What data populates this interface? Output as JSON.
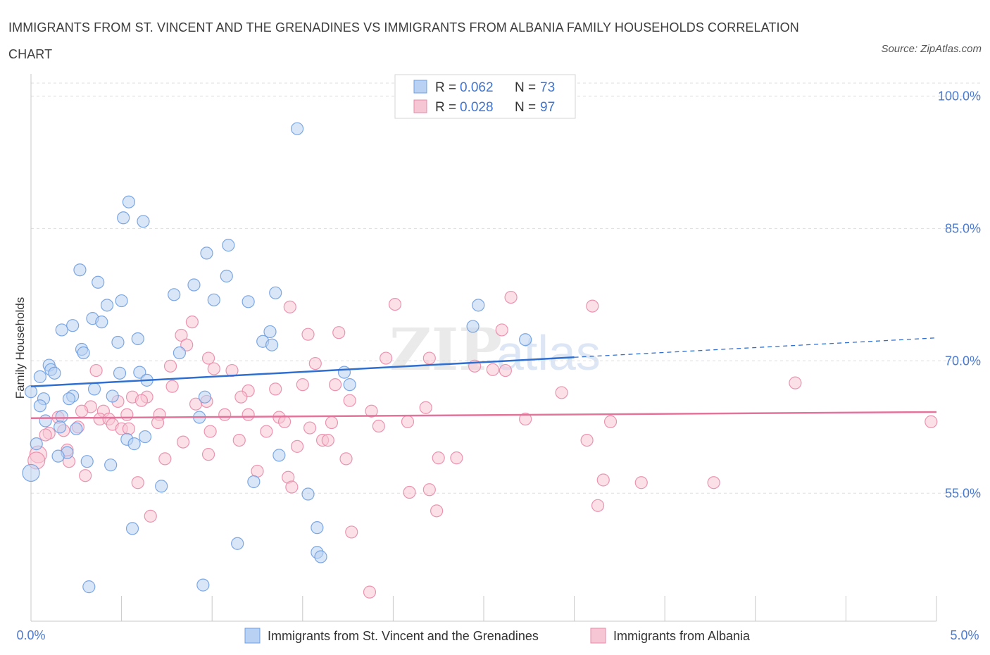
{
  "header": {
    "title": "IMMIGRANTS FROM ST. VINCENT AND THE GRENADINES VS IMMIGRANTS FROM ALBANIA FAMILY HOUSEHOLDS CORRELATION CHART",
    "source": "Source: ZipAtlas.com"
  },
  "watermark": {
    "zip": "ZIP",
    "atlas": "atlas"
  },
  "colors": {
    "blue": "#6f9fe0",
    "blue_fill": "#b9d1f3",
    "blue_line": "#2f6fcf",
    "pink": "#e98aa8",
    "pink_fill": "#f7c6d5",
    "pink_line": "#e2739a",
    "tick": "#4a7bd0",
    "grid": "#dddddd"
  },
  "legend": {
    "rows": [
      {
        "r_label": "R =",
        "r_value": "0.062",
        "n_label": "N =",
        "n_value": "73"
      },
      {
        "r_label": "R =",
        "r_value": "0.028",
        "n_label": "N =",
        "n_value": "97"
      }
    ]
  },
  "chart_data": {
    "type": "scatter",
    "title": "IMMIGRANTS FROM ST. VINCENT AND THE GRENADINES VS IMMIGRANTS FROM ALBANIA FAMILY HOUSEHOLDS CORRELATION CHART",
    "xlabel": "",
    "ylabel": "Family Households",
    "xlim": [
      0.0,
      5.0
    ],
    "ylim": [
      40.5,
      102.5
    ],
    "x_tick_labels": [
      "0.0%",
      "5.0%"
    ],
    "y_ticks": [
      100,
      85,
      70,
      55
    ],
    "y_tick_labels": [
      "100.0%",
      "85.0%",
      "70.0%",
      "55.0%"
    ],
    "grid": true,
    "series": [
      {
        "name": "Immigrants from St. Vincent and the Grenadines",
        "R": 0.062,
        "N": 73,
        "trend": {
          "x0": 0.0,
          "y0": 67.1,
          "x1": 3.0,
          "y1": 70.4,
          "dash_x1": 5.0,
          "dash_y1": 72.6
        },
        "points": [
          [
            1.47,
            96.3
          ],
          [
            0.54,
            88.0
          ],
          [
            0.51,
            86.2
          ],
          [
            0.62,
            85.8
          ],
          [
            1.09,
            83.1
          ],
          [
            0.97,
            82.2
          ],
          [
            0.27,
            80.3
          ],
          [
            1.08,
            79.6
          ],
          [
            0.37,
            78.9
          ],
          [
            0.9,
            78.6
          ],
          [
            1.35,
            77.7
          ],
          [
            0.79,
            77.5
          ],
          [
            0.5,
            76.8
          ],
          [
            1.01,
            76.9
          ],
          [
            1.2,
            76.7
          ],
          [
            0.42,
            76.3
          ],
          [
            2.47,
            76.3
          ],
          [
            0.34,
            74.8
          ],
          [
            0.39,
            74.4
          ],
          [
            0.23,
            74.0
          ],
          [
            2.44,
            73.9
          ],
          [
            0.17,
            73.5
          ],
          [
            1.32,
            73.3
          ],
          [
            0.59,
            72.5
          ],
          [
            2.73,
            72.4
          ],
          [
            0.48,
            72.1
          ],
          [
            1.28,
            72.2
          ],
          [
            1.33,
            71.8
          ],
          [
            0.28,
            71.3
          ],
          [
            0.29,
            70.9
          ],
          [
            0.82,
            70.9
          ],
          [
            0.1,
            69.5
          ],
          [
            0.11,
            69.0
          ],
          [
            0.13,
            68.6
          ],
          [
            0.05,
            68.2
          ],
          [
            0.49,
            68.6
          ],
          [
            0.6,
            68.7
          ],
          [
            1.73,
            68.7
          ],
          [
            0.64,
            67.8
          ],
          [
            1.76,
            67.3
          ],
          [
            0.0,
            66.5
          ],
          [
            0.35,
            66.8
          ],
          [
            0.23,
            66.0
          ],
          [
            0.45,
            66.0
          ],
          [
            0.96,
            65.9
          ],
          [
            0.07,
            65.7
          ],
          [
            0.21,
            65.7
          ],
          [
            0.05,
            64.9
          ],
          [
            0.17,
            63.7
          ],
          [
            0.93,
            63.6
          ],
          [
            0.08,
            63.2
          ],
          [
            0.16,
            62.5
          ],
          [
            0.25,
            62.3
          ],
          [
            0.63,
            61.4
          ],
          [
            0.53,
            61.1
          ],
          [
            0.57,
            60.6
          ],
          [
            0.03,
            60.6
          ],
          [
            0.2,
            59.6
          ],
          [
            1.37,
            59.3
          ],
          [
            0.15,
            59.2
          ],
          [
            0.31,
            58.6
          ],
          [
            0.44,
            58.2
          ],
          [
            0.0,
            57.3
          ],
          [
            1.23,
            56.3
          ],
          [
            0.72,
            55.8
          ],
          [
            1.53,
            54.9
          ],
          [
            0.56,
            51.0
          ],
          [
            1.58,
            51.1
          ],
          [
            1.14,
            49.3
          ],
          [
            1.58,
            48.3
          ],
          [
            1.6,
            47.8
          ],
          [
            0.32,
            44.4
          ],
          [
            0.95,
            44.6
          ]
        ]
      },
      {
        "name": "Immigrants from Albania",
        "R": 0.028,
        "N": 97,
        "trend": {
          "x0": 0.0,
          "y0": 63.5,
          "x1": 5.0,
          "y1": 64.2
        },
        "points": [
          [
            2.01,
            76.4
          ],
          [
            2.65,
            77.2
          ],
          [
            3.1,
            76.2
          ],
          [
            0.89,
            74.4
          ],
          [
            1.43,
            76.1
          ],
          [
            2.6,
            73.5
          ],
          [
            1.53,
            73.0
          ],
          [
            1.7,
            73.2
          ],
          [
            0.83,
            72.9
          ],
          [
            0.86,
            71.8
          ],
          [
            0.98,
            70.3
          ],
          [
            1.96,
            70.3
          ],
          [
            2.2,
            70.3
          ],
          [
            0.77,
            69.4
          ],
          [
            1.57,
            69.7
          ],
          [
            2.45,
            69.4
          ],
          [
            0.36,
            68.9
          ],
          [
            2.55,
            69.0
          ],
          [
            2.62,
            68.9
          ],
          [
            1.01,
            69.1
          ],
          [
            1.11,
            68.9
          ],
          [
            4.22,
            67.5
          ],
          [
            1.5,
            67.3
          ],
          [
            1.68,
            67.3
          ],
          [
            0.78,
            67.1
          ],
          [
            1.2,
            66.6
          ],
          [
            1.35,
            66.8
          ],
          [
            2.93,
            66.4
          ],
          [
            1.16,
            65.9
          ],
          [
            0.56,
            65.9
          ],
          [
            0.64,
            65.9
          ],
          [
            0.61,
            65.5
          ],
          [
            0.48,
            65.4
          ],
          [
            0.97,
            65.4
          ],
          [
            1.76,
            65.5
          ],
          [
            0.91,
            65.1
          ],
          [
            0.33,
            64.8
          ],
          [
            2.18,
            64.7
          ],
          [
            0.28,
            64.3
          ],
          [
            0.4,
            64.3
          ],
          [
            1.88,
            64.3
          ],
          [
            0.71,
            63.9
          ],
          [
            1.07,
            63.9
          ],
          [
            0.53,
            63.9
          ],
          [
            1.2,
            63.9
          ],
          [
            1.37,
            63.6
          ],
          [
            0.38,
            63.4
          ],
          [
            0.43,
            63.4
          ],
          [
            2.73,
            63.4
          ],
          [
            1.4,
            63.1
          ],
          [
            1.66,
            63.0
          ],
          [
            2.08,
            63.1
          ],
          [
            0.7,
            63.0
          ],
          [
            3.2,
            63.1
          ],
          [
            0.45,
            62.8
          ],
          [
            0.5,
            62.3
          ],
          [
            0.26,
            62.5
          ],
          [
            1.54,
            62.4
          ],
          [
            1.92,
            62.6
          ],
          [
            0.54,
            62.3
          ],
          [
            0.99,
            62.0
          ],
          [
            1.3,
            62.0
          ],
          [
            0.1,
            61.8
          ],
          [
            0.08,
            61.6
          ],
          [
            0.84,
            60.8
          ],
          [
            1.15,
            61.0
          ],
          [
            1.61,
            61.0
          ],
          [
            1.64,
            61.0
          ],
          [
            3.07,
            61.0
          ],
          [
            1.47,
            60.3
          ],
          [
            0.2,
            59.9
          ],
          [
            0.04,
            59.4
          ],
          [
            0.98,
            59.4
          ],
          [
            0.03,
            58.7
          ],
          [
            0.21,
            58.6
          ],
          [
            0.74,
            58.9
          ],
          [
            1.74,
            58.9
          ],
          [
            2.25,
            59.0
          ],
          [
            2.35,
            59.0
          ],
          [
            1.25,
            57.5
          ],
          [
            0.3,
            57.0
          ],
          [
            1.42,
            56.8
          ],
          [
            3.16,
            56.5
          ],
          [
            0.59,
            56.2
          ],
          [
            3.37,
            56.2
          ],
          [
            3.77,
            56.2
          ],
          [
            1.44,
            55.7
          ],
          [
            2.09,
            55.1
          ],
          [
            2.2,
            55.4
          ],
          [
            3.13,
            53.6
          ],
          [
            0.66,
            52.4
          ],
          [
            2.24,
            53.0
          ],
          [
            1.77,
            50.6
          ],
          [
            1.87,
            43.8
          ],
          [
            4.97,
            63.1
          ],
          [
            0.18,
            62.1
          ],
          [
            0.15,
            63.6
          ]
        ]
      }
    ]
  },
  "bottom_legend": {
    "items": [
      {
        "label": "Immigrants from St. Vincent and the Grenadines"
      },
      {
        "label": "Immigrants from Albania"
      }
    ]
  }
}
